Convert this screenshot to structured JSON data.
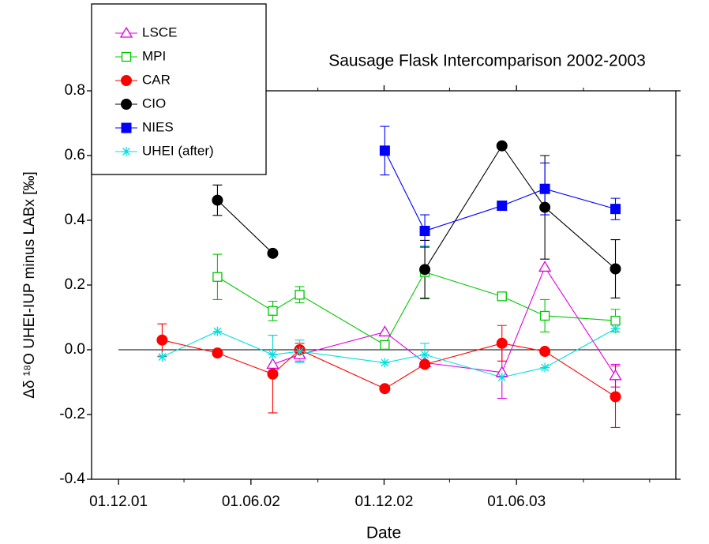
{
  "chart_data": {
    "type": "line",
    "title": "Sausage Flask Intercomparison 2002-2003",
    "xlabel": "Date",
    "ylabel": "Δδ ¹⁸O UHEI-IUP minus LABx [‰]",
    "x": [
      "2002-01-30",
      "2002-04-16",
      "2002-07-01",
      "2002-08-07",
      "2002-12-02",
      "2003-01-26",
      "2003-05-12",
      "2003-07-10",
      "2003-10-15"
    ],
    "xlim": [
      "2001-10-25",
      "2004-01-06"
    ],
    "xticks": [
      {
        "value": "2001-12-01",
        "label": "01.12.01"
      },
      {
        "value": "2002-06-01",
        "label": "01.06.02"
      },
      {
        "value": "2002-12-01",
        "label": "01.12.02"
      },
      {
        "value": "2003-06-01",
        "label": "01.06.03"
      }
    ],
    "xminorticks": [
      "2002-03-01",
      "2002-09-01",
      "2003-03-01",
      "2003-09-01",
      "2003-12-01"
    ],
    "ylim": [
      -0.4,
      0.8
    ],
    "yticks": [
      -0.4,
      -0.2,
      {
        "value": 0,
        "label": "0.0"
      },
      0.2,
      0.4,
      0.6,
      0.8
    ],
    "hline": 0,
    "legend": "top-left",
    "series": [
      {
        "name": "LSCE",
        "color": "#e000e0",
        "marker": "triangle-open",
        "values": [
          null,
          null,
          -0.045,
          -0.015,
          0.055,
          -0.04,
          -0.07,
          0.255,
          -0.08
        ],
        "errors": [
          null,
          null,
          0.03,
          0.02,
          null,
          null,
          0.08,
          null,
          0.035
        ]
      },
      {
        "name": "MPI",
        "color": "#00c800",
        "marker": "square-open",
        "values": [
          null,
          0.225,
          0.12,
          0.17,
          0.015,
          0.24,
          0.165,
          0.105,
          0.09
        ],
        "errors": [
          null,
          0.07,
          0.03,
          0.025,
          null,
          0.08,
          0.01,
          0.05,
          0.035
        ]
      },
      {
        "name": "CAR",
        "color": "#ff0000",
        "marker": "circle",
        "values": [
          0.03,
          -0.01,
          -0.075,
          0.0,
          -0.12,
          -0.045,
          0.02,
          -0.005,
          -0.145
        ],
        "errors": [
          0.05,
          null,
          0.12,
          0.02,
          null,
          null,
          0.055,
          null,
          0.095
        ]
      },
      {
        "name": "CIO",
        "color": "#000000",
        "marker": "circle",
        "values": [
          null,
          0.462,
          0.298,
          null,
          null,
          0.248,
          0.63,
          0.44,
          0.25
        ],
        "errors": [
          null,
          0.047,
          null,
          null,
          null,
          0.09,
          null,
          0.16,
          0.09
        ]
      },
      {
        "name": "NIES",
        "color": "#0000ff",
        "marker": "square",
        "values": [
          null,
          null,
          null,
          null,
          0.615,
          0.367,
          0.445,
          0.497,
          0.435
        ],
        "errors": [
          null,
          null,
          null,
          null,
          0.075,
          0.05,
          0.01,
          0.08,
          0.033
        ]
      },
      {
        "name": "UHEI (after)",
        "color": "#00e0e0",
        "marker": "asterisk",
        "values": [
          -0.022,
          0.057,
          -0.015,
          -0.005,
          -0.04,
          -0.015,
          -0.085,
          -0.055,
          0.065
        ],
        "errors": [
          null,
          null,
          0.06,
          0.035,
          null,
          0.035,
          null,
          null,
          null
        ]
      }
    ]
  }
}
